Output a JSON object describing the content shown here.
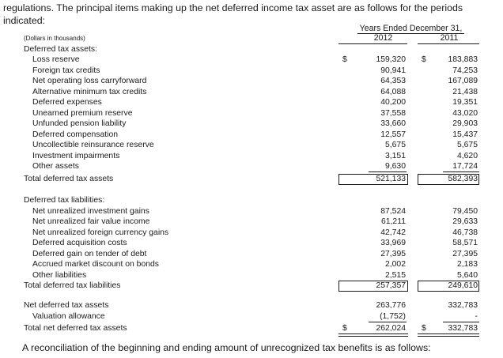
{
  "intro_text": "regulations. The principal items making up the net deferred income tax asset are as follows for the periods indicated:",
  "closing_text": "A reconciliation of the beginning and ending amount of unrecognized tax benefits is as follows:",
  "table": {
    "units_label": "(Dollars in thousands)",
    "period_header": "Years Ended December 31,",
    "years": [
      "2012",
      "2011"
    ],
    "currency_symbol": "$",
    "rows": [
      {
        "label": "Deferred tax assets:",
        "kind": "heading",
        "v2012": "",
        "v2011": ""
      },
      {
        "label": "Loss reserve",
        "kind": "item",
        "v2012": "159,320",
        "v2011": "183,883"
      },
      {
        "label": "Foreign tax credits",
        "kind": "item",
        "v2012": "90,941",
        "v2011": "74,253"
      },
      {
        "label": "Net operating loss carryforward",
        "kind": "item",
        "v2012": "64,353",
        "v2011": "167,089"
      },
      {
        "label": "Alternative minimum tax credits",
        "kind": "item",
        "v2012": "64,088",
        "v2011": "21,438"
      },
      {
        "label": "Deferred expenses",
        "kind": "item",
        "v2012": "40,200",
        "v2011": "19,351"
      },
      {
        "label": "Unearned premium reserve",
        "kind": "item",
        "v2012": "37,558",
        "v2011": "43,020"
      },
      {
        "label": "Unfunded pension liability",
        "kind": "item",
        "v2012": "33,660",
        "v2011": "29,903"
      },
      {
        "label": "Deferred compensation",
        "kind": "item",
        "v2012": "12,557",
        "v2011": "15,437"
      },
      {
        "label": "Uncollectible reinsurance reserve",
        "kind": "item",
        "v2012": "5,675",
        "v2011": "5,675"
      },
      {
        "label": "Investment impairments",
        "kind": "item",
        "v2012": "3,151",
        "v2011": "4,620"
      },
      {
        "label": "Other assets",
        "kind": "item",
        "v2012": "9,630",
        "v2011": "17,724"
      },
      {
        "label": "Total deferred tax assets",
        "kind": "total",
        "v2012": "521,133",
        "v2011": "582,393"
      },
      {
        "label": "Deferred tax liabilities:",
        "kind": "heading",
        "v2012": "",
        "v2011": ""
      },
      {
        "label": "Net unrealized investment gains",
        "kind": "item",
        "v2012": "87,524",
        "v2011": "79,450"
      },
      {
        "label": "Net unrealized fair value income",
        "kind": "item",
        "v2012": "61,211",
        "v2011": "29,633"
      },
      {
        "label": "Net unrealized foreign currency gains",
        "kind": "item",
        "v2012": "42,742",
        "v2011": "46,738"
      },
      {
        "label": "Deferred acquisition costs",
        "kind": "item",
        "v2012": "33,969",
        "v2011": "58,571"
      },
      {
        "label": "Deferred gain on tender of debt",
        "kind": "item",
        "v2012": "27,395",
        "v2011": "27,395"
      },
      {
        "label": "Accrued market discount on bonds",
        "kind": "item",
        "v2012": "2,002",
        "v2011": "2,183"
      },
      {
        "label": "Other liabilities",
        "kind": "item",
        "v2012": "2,515",
        "v2011": "5,640"
      },
      {
        "label": "Total deferred tax liabilities",
        "kind": "total",
        "v2012": "257,357",
        "v2011": "249,610"
      },
      {
        "label": "Net deferred tax assets",
        "kind": "heading",
        "v2012": "263,776",
        "v2011": "332,783"
      },
      {
        "label": "Valuation allowance",
        "kind": "item",
        "v2012": "(1,752)",
        "v2011": "-"
      },
      {
        "label": "Total net deferred tax assets",
        "kind": "grand-total",
        "v2012": "262,024",
        "v2011": "332,783"
      }
    ]
  }
}
